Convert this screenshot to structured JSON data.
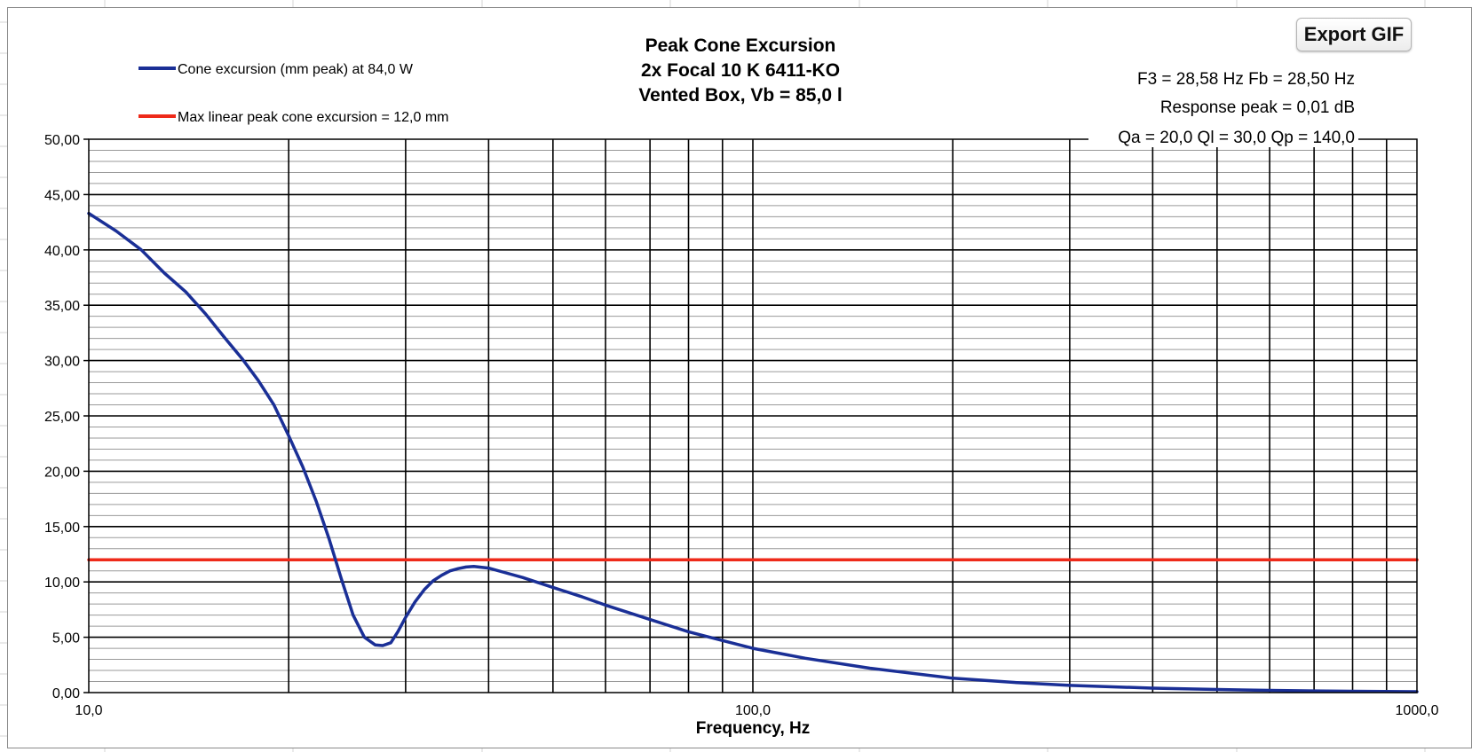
{
  "ui": {
    "export_button_label": "Export GIF",
    "colors": {
      "sheet_grid": "#d4d4d4",
      "frame": "#8a8a8a",
      "grid_major": "#000000",
      "grid_minor": "#9a9a9a"
    }
  },
  "info_lines": [
    "F3 = 28,58 Hz  Fb = 28,50 Hz",
    "Response peak = 0,01 dB",
    "Qa = 20,0  Ql = 30,0  Qp = 140,0"
  ],
  "chart_data": {
    "type": "line",
    "title": [
      "Peak Cone Excursion",
      "2x Focal 10 K 6411-KO",
      "Vented Box, Vb = 85,0 l"
    ],
    "xlabel": "Frequency, Hz",
    "ylabel": "",
    "xscale": "log",
    "xlim": [
      10,
      1000
    ],
    "ylim": [
      0,
      50
    ],
    "x_tick_labels": [
      "10,0",
      "100,0",
      "1000,0"
    ],
    "y_tick_labels": [
      "0,00",
      "5,00",
      "10,00",
      "15,00",
      "20,00",
      "25,00",
      "30,00",
      "35,00",
      "40,00",
      "45,00",
      "50,00"
    ],
    "grid": true,
    "legend_position": "top-left",
    "series": [
      {
        "name": "Cone excursion (mm peak) at 84,0 W",
        "color": "#1a2f96",
        "x": [
          10,
          11,
          12,
          13,
          14,
          15,
          16,
          17,
          18,
          19,
          20,
          21,
          22,
          23,
          24,
          25,
          26,
          27,
          27.7,
          28.5,
          29.2,
          30,
          31,
          32,
          33,
          34,
          35,
          36,
          37,
          38,
          40,
          42,
          45,
          50,
          55,
          60,
          70,
          80,
          90,
          100,
          120,
          150,
          200,
          250,
          300,
          400,
          500,
          600,
          700,
          800,
          1000
        ],
        "y": [
          43.3,
          41.7,
          40.0,
          37.9,
          36.2,
          34.2,
          32.1,
          30.2,
          28.2,
          26.0,
          23.2,
          20.4,
          17.3,
          13.9,
          10.3,
          7.0,
          5.0,
          4.3,
          4.25,
          4.5,
          5.5,
          6.8,
          8.2,
          9.3,
          10.1,
          10.6,
          11.0,
          11.2,
          11.35,
          11.4,
          11.25,
          10.9,
          10.4,
          9.5,
          8.7,
          7.9,
          6.6,
          5.5,
          4.7,
          4.0,
          3.1,
          2.2,
          1.3,
          0.9,
          0.65,
          0.4,
          0.28,
          0.2,
          0.15,
          0.12,
          0.08
        ]
      },
      {
        "name": "Max linear peak cone excursion = 12,0 mm",
        "color": "#ee2a1a",
        "x": [
          10,
          1000
        ],
        "y": [
          12.0,
          12.0
        ]
      }
    ]
  }
}
